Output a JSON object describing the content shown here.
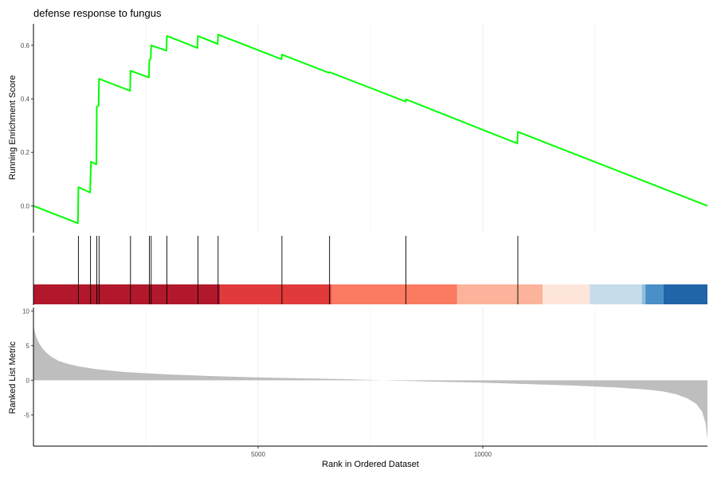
{
  "chart_data": {
    "type": "line",
    "title": "defense response to fungus",
    "xlabel": "Rank in Ordered Dataset",
    "xlim": [
      0,
      15000
    ],
    "x_ticks": [
      5000,
      10000
    ],
    "grid": "vertical",
    "panels": {
      "enrichment": {
        "ylabel": "Running Enrichment Score",
        "ylim": [
          -0.1,
          0.68
        ],
        "y_ticks": [
          0.0,
          0.2,
          0.4,
          0.6
        ],
        "line_color": "#00ff00",
        "points": [
          [
            0,
            0.0
          ],
          [
            990,
            -0.065
          ],
          [
            1000,
            0.07
          ],
          [
            1260,
            0.05
          ],
          [
            1280,
            0.165
          ],
          [
            1400,
            0.155
          ],
          [
            1410,
            0.37
          ],
          [
            1450,
            0.375
          ],
          [
            1460,
            0.475
          ],
          [
            2150,
            0.43
          ],
          [
            2160,
            0.505
          ],
          [
            2570,
            0.48
          ],
          [
            2580,
            0.545
          ],
          [
            2610,
            0.55
          ],
          [
            2620,
            0.6
          ],
          [
            2960,
            0.58
          ],
          [
            2970,
            0.635
          ],
          [
            3650,
            0.59
          ],
          [
            3660,
            0.635
          ],
          [
            4100,
            0.605
          ],
          [
            4110,
            0.64
          ],
          [
            5520,
            0.548
          ],
          [
            5530,
            0.565
          ],
          [
            6580,
            0.497
          ],
          [
            6590,
            0.5
          ],
          [
            8280,
            0.39
          ],
          [
            8290,
            0.398
          ],
          [
            10770,
            0.233
          ],
          [
            10780,
            0.277
          ],
          [
            15000,
            0.0
          ]
        ]
      },
      "hits": {
        "positions": [
          1000,
          1270,
          1410,
          1460,
          2160,
          2580,
          2620,
          2970,
          3660,
          4110,
          5530,
          6590,
          8290,
          10780
        ]
      },
      "heatmap": {
        "segments": [
          {
            "from": 0,
            "to": 4150,
            "color": "#b2182b"
          },
          {
            "from": 4150,
            "to": 6630,
            "color": "#e03a3a"
          },
          {
            "from": 6630,
            "to": 9430,
            "color": "#fb7a62"
          },
          {
            "from": 9430,
            "to": 11330,
            "color": "#fcb39b"
          },
          {
            "from": 11330,
            "to": 12380,
            "color": "#fee5da"
          },
          {
            "from": 12380,
            "to": 13540,
            "color": "#c6dcea"
          },
          {
            "from": 13540,
            "to": 13620,
            "color": "#8fbfde"
          },
          {
            "from": 13620,
            "to": 14020,
            "color": "#4a8fc8"
          },
          {
            "from": 14020,
            "to": 15000,
            "color": "#2065a8"
          }
        ]
      },
      "ranked": {
        "ylabel": "Ranked List Metric",
        "ylim": [
          -9.5,
          10.5
        ],
        "y_ticks": [
          -5,
          0,
          5,
          10
        ],
        "fill_color": "#bebebe",
        "points": [
          [
            0,
            8.0
          ],
          [
            20,
            7.2
          ],
          [
            60,
            6.3
          ],
          [
            120,
            5.4
          ],
          [
            200,
            4.6
          ],
          [
            300,
            3.9
          ],
          [
            420,
            3.3
          ],
          [
            560,
            2.8
          ],
          [
            750,
            2.4
          ],
          [
            1000,
            2.0
          ],
          [
            1400,
            1.6
          ],
          [
            2000,
            1.2
          ],
          [
            3000,
            0.85
          ],
          [
            4000,
            0.6
          ],
          [
            5000,
            0.42
          ],
          [
            6000,
            0.28
          ],
          [
            7000,
            0.15
          ],
          [
            7500,
            0.05
          ],
          [
            8000,
            -0.05
          ],
          [
            9000,
            -0.2
          ],
          [
            10000,
            -0.35
          ],
          [
            11000,
            -0.55
          ],
          [
            12000,
            -0.75
          ],
          [
            13000,
            -1.05
          ],
          [
            13600,
            -1.3
          ],
          [
            14000,
            -1.6
          ],
          [
            14300,
            -2.0
          ],
          [
            14550,
            -2.6
          ],
          [
            14750,
            -3.4
          ],
          [
            14880,
            -4.5
          ],
          [
            14960,
            -6.2
          ],
          [
            15000,
            -8.5
          ]
        ]
      }
    }
  }
}
